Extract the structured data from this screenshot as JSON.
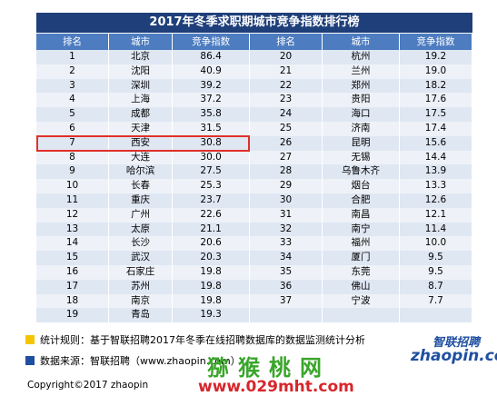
{
  "title": "2017年冬季求职期城市竞争指数排行榜",
  "header": [
    "排名",
    "城市",
    "竞争指数"
  ],
  "left_rows": [
    [
      "1",
      "北京",
      "86.4"
    ],
    [
      "2",
      "沈阳",
      "40.9"
    ],
    [
      "3",
      "深圳",
      "39.2"
    ],
    [
      "4",
      "上海",
      "37.2"
    ],
    [
      "5",
      "成都",
      "35.8"
    ],
    [
      "6",
      "天津",
      "31.5"
    ],
    [
      "7",
      "西安",
      "30.8"
    ],
    [
      "8",
      "大连",
      "30.0"
    ],
    [
      "9",
      "哈尔滨",
      "27.5"
    ],
    [
      "10",
      "长春",
      "25.3"
    ],
    [
      "11",
      "重庆",
      "23.7"
    ],
    [
      "12",
      "广州",
      "22.6"
    ],
    [
      "13",
      "太原",
      "21.1"
    ],
    [
      "14",
      "长沙",
      "20.6"
    ],
    [
      "15",
      "武汉",
      "20.3"
    ],
    [
      "16",
      "石家庄",
      "19.8"
    ],
    [
      "17",
      "苏州",
      "19.8"
    ],
    [
      "18",
      "南京",
      "19.8"
    ],
    [
      "19",
      "青岛",
      "19.3"
    ]
  ],
  "right_rows": [
    [
      "20",
      "杭州",
      "19.2"
    ],
    [
      "21",
      "兰州",
      "19.0"
    ],
    [
      "22",
      "郑州",
      "18.2"
    ],
    [
      "23",
      "贵阳",
      "17.6"
    ],
    [
      "24",
      "海口",
      "17.5"
    ],
    [
      "25",
      "济南",
      "17.4"
    ],
    [
      "26",
      "昆明",
      "15.6"
    ],
    [
      "27",
      "无锡",
      "14.4"
    ],
    [
      "28",
      "乌鲁木齐",
      "13.9"
    ],
    [
      "29",
      "烟台",
      "13.3"
    ],
    [
      "30",
      "合肥",
      "12.6"
    ],
    [
      "31",
      "南昌",
      "12.1"
    ],
    [
      "32",
      "南宁",
      "11.4"
    ],
    [
      "33",
      "福州",
      "10.0"
    ],
    [
      "34",
      "厦门",
      "9.5"
    ],
    [
      "35",
      "东莞",
      "9.5"
    ],
    [
      "36",
      "佛山",
      "8.7"
    ],
    [
      "37",
      "宁波",
      "7.7"
    ]
  ],
  "notes": [
    "统计规则：基于智联招聘2017年冬季在线招聘数据库的数据监测统计分析",
    "数据来源：智联招聘（www.zhaopin.com）"
  ],
  "copyright": "Copyright©2017 zhaopin",
  "logo": {
    "name": "智联招聘",
    "url": "zhaopin.com"
  },
  "watermark": {
    "name": "猕猴桃网",
    "url": "www.029mht.com"
  }
}
